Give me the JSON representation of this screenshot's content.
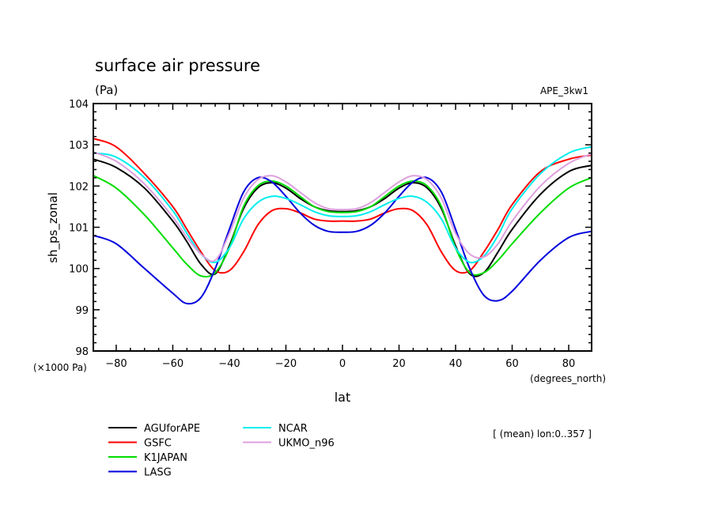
{
  "chart_data": {
    "type": "line",
    "title": "surface air pressure",
    "units": "(Pa)",
    "experiment": "APE_3kw1",
    "ylabel": "sh_ps_zonal",
    "yscale_label": "(×1000 Pa)",
    "xlabel": "lat",
    "xunits": "(degrees_north)",
    "note": "[ (mean) lon:0..357 ]",
    "xlim": [
      -88.1,
      88.1
    ],
    "ylim": [
      98,
      104
    ],
    "xticks": [
      -80,
      -60,
      -40,
      -20,
      0,
      20,
      40,
      60,
      80
    ],
    "xtick_labels": [
      "-80",
      "-60",
      "-40",
      "-20",
      "0",
      "20",
      "40",
      "60",
      "80"
    ],
    "yticks": [
      98,
      99,
      100,
      101,
      102,
      103,
      104
    ],
    "ytick_labels": [
      "98",
      "99",
      "100",
      "101",
      "102",
      "103",
      "104"
    ],
    "x": [
      -88,
      -80,
      -70,
      -60,
      -55,
      -50,
      -45,
      -40,
      -35,
      -30,
      -25,
      -20,
      -15,
      -10,
      -5,
      0,
      5,
      10,
      15,
      20,
      25,
      30,
      35,
      40,
      45,
      50,
      55,
      60,
      70,
      80,
      88
    ],
    "series": [
      {
        "name": "AGUforAPE",
        "color": "#000000",
        "values": [
          102.65,
          102.45,
          101.95,
          101.15,
          100.65,
          100.1,
          99.87,
          100.55,
          101.45,
          101.95,
          102.08,
          101.95,
          101.7,
          101.5,
          101.4,
          101.38,
          101.4,
          101.5,
          101.7,
          101.95,
          102.08,
          101.95,
          101.45,
          100.55,
          99.87,
          99.9,
          100.4,
          100.95,
          101.8,
          102.35,
          102.5
        ]
      },
      {
        "name": "GSFC",
        "color": "#ff0000",
        "values": [
          103.15,
          102.95,
          102.3,
          101.5,
          100.95,
          100.4,
          99.95,
          99.95,
          100.4,
          101.05,
          101.4,
          101.45,
          101.35,
          101.2,
          101.15,
          101.15,
          101.15,
          101.2,
          101.35,
          101.45,
          101.4,
          101.05,
          100.4,
          99.95,
          99.95,
          100.4,
          100.95,
          101.55,
          102.35,
          102.65,
          102.75
        ]
      },
      {
        "name": "K1JAPAN",
        "color": "#00dd00",
        "values": [
          102.25,
          101.95,
          101.3,
          100.5,
          100.1,
          99.82,
          99.9,
          100.5,
          101.5,
          102.0,
          102.12,
          102.0,
          101.75,
          101.5,
          101.38,
          101.36,
          101.38,
          101.5,
          101.75,
          102.0,
          102.12,
          102.0,
          101.5,
          100.5,
          99.9,
          99.9,
          100.2,
          100.6,
          101.35,
          101.95,
          102.2
        ]
      },
      {
        "name": "LASG",
        "color": "#0000dd",
        "values": [
          100.8,
          100.6,
          100.0,
          99.4,
          99.15,
          99.3,
          100.0,
          100.95,
          101.85,
          102.2,
          102.1,
          101.75,
          101.35,
          101.05,
          100.9,
          100.88,
          100.9,
          101.05,
          101.35,
          101.75,
          102.1,
          102.2,
          101.85,
          100.95,
          100.0,
          99.35,
          99.22,
          99.45,
          100.2,
          100.75,
          100.9
        ]
      },
      {
        "name": "NCAR",
        "color": "#00eeee",
        "values": [
          102.8,
          102.7,
          102.2,
          101.4,
          100.85,
          100.35,
          100.15,
          100.5,
          101.2,
          101.6,
          101.75,
          101.7,
          101.55,
          101.38,
          101.28,
          101.26,
          101.28,
          101.38,
          101.55,
          101.7,
          101.75,
          101.6,
          101.2,
          100.5,
          100.15,
          100.3,
          100.8,
          101.45,
          102.3,
          102.8,
          102.95
        ]
      },
      {
        "name": "UKMO_n96",
        "color": "#dda0dd",
        "values": [
          102.82,
          102.6,
          102.05,
          101.25,
          100.75,
          100.35,
          100.2,
          100.85,
          101.7,
          102.15,
          102.25,
          102.1,
          101.85,
          101.6,
          101.45,
          101.43,
          101.45,
          101.6,
          101.85,
          102.1,
          102.25,
          102.15,
          101.7,
          100.85,
          100.35,
          100.28,
          100.6,
          101.15,
          102.0,
          102.55,
          102.78
        ]
      }
    ],
    "legend": {
      "placement": "bottom-left",
      "entries": [
        "AGUforAPE",
        "GSFC",
        "K1JAPAN",
        "LASG",
        "NCAR",
        "UKMO_n96"
      ]
    }
  }
}
